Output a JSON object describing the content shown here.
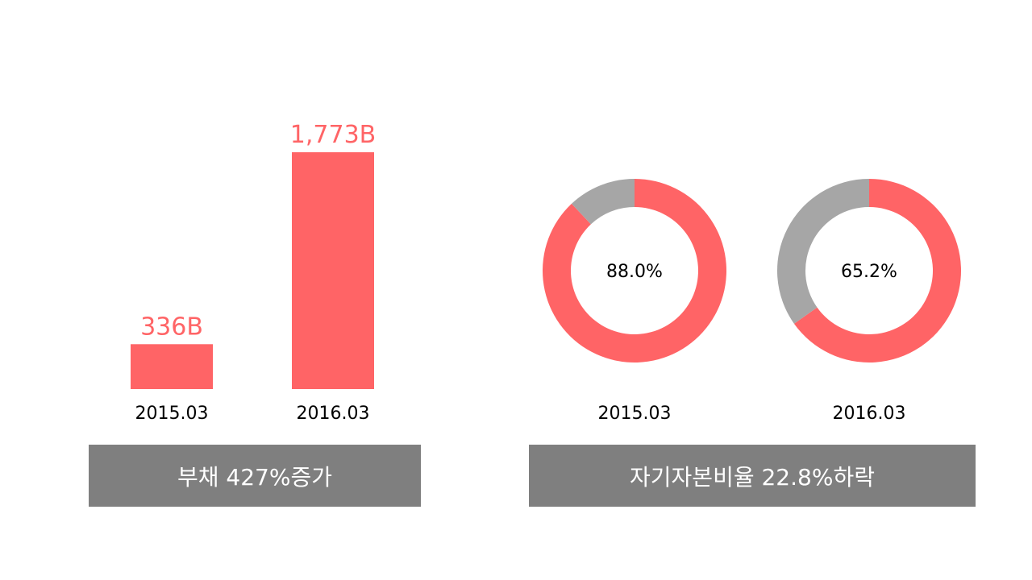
{
  "colors": {
    "accent": "#ff6466",
    "remainder": "#a6a6a6",
    "caption_bg": "#7f7f7f",
    "caption_text": "#ffffff"
  },
  "chart_data": [
    {
      "type": "bar",
      "categories": [
        "2015.03",
        "2016.03"
      ],
      "values": [
        336,
        1773
      ],
      "data_labels": [
        "336B",
        "1,773B"
      ],
      "ylim": [
        0,
        1773
      ],
      "grid": false,
      "caption": "부채 427%증가"
    },
    {
      "type": "pie",
      "style": "donut",
      "categories": [
        "2015.03",
        "2016.03"
      ],
      "values": [
        88.0,
        65.2
      ],
      "data_labels": [
        "88.0%",
        "65.2%"
      ],
      "caption": "자기자본비율 22.8%하락"
    }
  ]
}
